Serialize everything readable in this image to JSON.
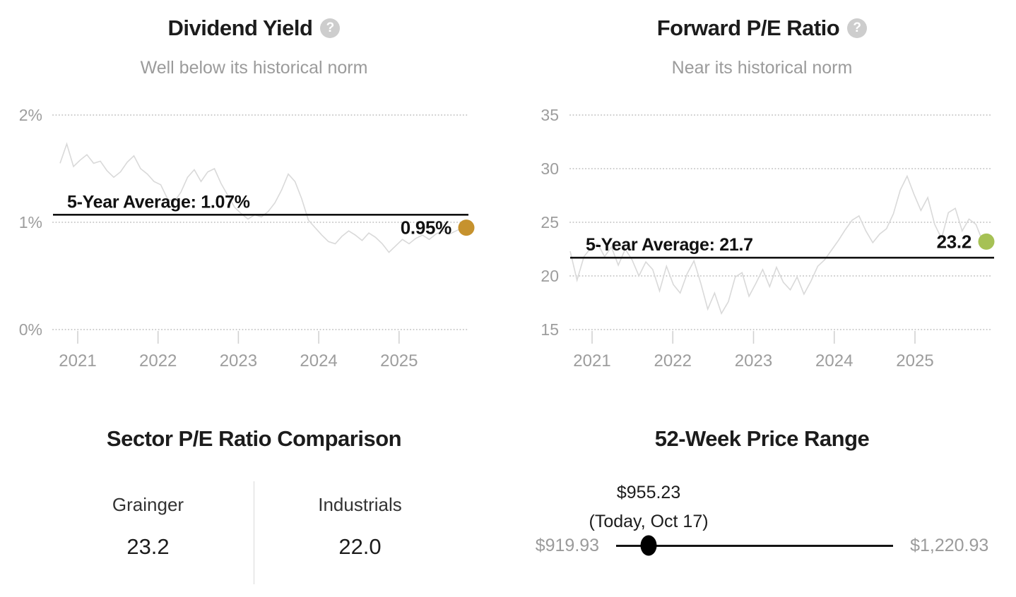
{
  "icons": {
    "help_glyph": "?"
  },
  "chart_data": [
    {
      "type": "line",
      "title": "Dividend Yield",
      "subtitle": "Well below its historical norm",
      "grid": "dotted-horizontal",
      "legend": "none",
      "y_ticks": [
        {
          "label": "2%",
          "value": 2
        },
        {
          "label": "1%",
          "value": 1
        },
        {
          "label": "0%",
          "value": 0
        }
      ],
      "x_ticks": [
        {
          "label": "2021",
          "value": 2021
        },
        {
          "label": "2022",
          "value": 2022
        },
        {
          "label": "2023",
          "value": 2023
        },
        {
          "label": "2024",
          "value": 2024
        },
        {
          "label": "2025",
          "value": 2025
        }
      ],
      "x_range": [
        2020.78,
        2025.79
      ],
      "y_range": [
        0,
        2.15
      ],
      "series": {
        "name": "Dividend Yield %",
        "color": "#d9d9d9",
        "values": [
          1.55,
          1.73,
          1.52,
          1.58,
          1.63,
          1.55,
          1.57,
          1.48,
          1.42,
          1.47,
          1.56,
          1.62,
          1.5,
          1.45,
          1.38,
          1.35,
          1.22,
          1.19,
          1.28,
          1.42,
          1.49,
          1.38,
          1.47,
          1.5,
          1.36,
          1.25,
          1.14,
          1.08,
          1.03,
          1.07,
          1.05,
          1.1,
          1.18,
          1.3,
          1.45,
          1.38,
          1.22,
          1.02,
          0.95,
          0.88,
          0.82,
          0.8,
          0.87,
          0.92,
          0.88,
          0.83,
          0.9,
          0.86,
          0.8,
          0.72,
          0.78,
          0.84,
          0.8,
          0.85,
          0.88,
          0.84,
          0.89,
          0.92,
          0.89,
          0.92,
          0.95
        ]
      },
      "average_line": {
        "label": "5-Year Average: 1.07%",
        "value": 1.07,
        "color": "#111111"
      },
      "current": {
        "label": "0.95%",
        "value": 0.95,
        "marker_color": "#c6922e"
      }
    },
    {
      "type": "line",
      "title": "Forward P/E Ratio",
      "subtitle": "Near its historical norm",
      "grid": "dotted-horizontal",
      "legend": "none",
      "y_ticks": [
        {
          "label": "35",
          "value": 35
        },
        {
          "label": "30",
          "value": 30
        },
        {
          "label": "25",
          "value": 25
        },
        {
          "label": "20",
          "value": 20
        },
        {
          "label": "15",
          "value": 15
        }
      ],
      "x_ticks": [
        {
          "label": "2021",
          "value": 2021
        },
        {
          "label": "2022",
          "value": 2022
        },
        {
          "label": "2023",
          "value": 2023
        },
        {
          "label": "2024",
          "value": 2024
        },
        {
          "label": "2025",
          "value": 2025
        }
      ],
      "x_range": [
        2020.73,
        2025.84
      ],
      "y_range": [
        15,
        35
      ],
      "series": {
        "name": "Forward P/E Ratio",
        "color": "#d9d9d9",
        "values": [
          22.3,
          19.6,
          21.8,
          22.6,
          23.0,
          21.8,
          22.7,
          21.0,
          22.5,
          21.5,
          20.0,
          21.3,
          20.6,
          18.6,
          20.9,
          19.2,
          18.4,
          20.2,
          21.4,
          19.3,
          16.9,
          18.4,
          16.5,
          17.6,
          19.9,
          20.3,
          18.1,
          19.3,
          20.6,
          19.0,
          20.8,
          19.4,
          18.7,
          19.9,
          18.3,
          19.5,
          20.9,
          21.5,
          22.4,
          23.3,
          24.3,
          25.2,
          25.6,
          24.2,
          23.1,
          23.9,
          24.4,
          25.8,
          28.0,
          29.3,
          27.6,
          26.1,
          27.3,
          24.8,
          23.5,
          25.9,
          26.3,
          24.2,
          25.3,
          24.8,
          23.2
        ]
      },
      "average_line": {
        "label": "5-Year Average: 21.7",
        "value": 21.7,
        "color": "#111111"
      },
      "current": {
        "label": "23.2",
        "value": 23.2,
        "marker_color": "#a6c155"
      }
    }
  ],
  "sections": {
    "sector_comparison": {
      "title": "Sector P/E Ratio Comparison",
      "columns": [
        {
          "label": "Grainger",
          "value": "23.2"
        },
        {
          "label": "Industrials",
          "value": "22.0"
        }
      ]
    },
    "price_range": {
      "title": "52-Week Price Range",
      "current": {
        "label": "$955.23",
        "note": "(Today, Oct 17)",
        "value": 955.23
      },
      "low": {
        "label": "$919.93",
        "value": 919.93
      },
      "high": {
        "label": "$1,220.93",
        "value": 1220.93
      }
    }
  }
}
